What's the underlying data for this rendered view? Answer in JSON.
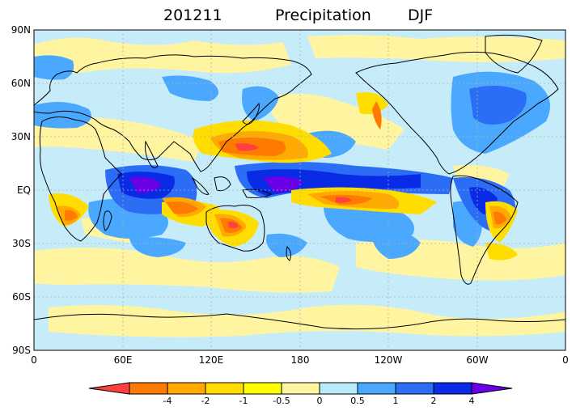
{
  "title": {
    "period": "201211",
    "variable": "Precipitation",
    "season": "DJF"
  },
  "axes": {
    "y_ticks": [
      "90N",
      "60N",
      "30N",
      "EQ",
      "30S",
      "60S",
      "90S"
    ],
    "x_ticks": [
      "0",
      "60E",
      "120E",
      "180",
      "120W",
      "60W",
      "0"
    ]
  },
  "colorbar": {
    "labels": [
      "-4",
      "-2",
      "-1",
      "-0.5",
      "0",
      "0.5",
      "1",
      "2",
      "4"
    ],
    "colors": [
      "#ff4040",
      "#ff7a00",
      "#ffaa00",
      "#ffdd00",
      "#ffff00",
      "#fff5a0",
      "#b8ecfa",
      "#4aa8ff",
      "#2b6ef5",
      "#0a2be6",
      "#6a00e6"
    ]
  },
  "palette": {
    "ocean_base": "#c6ecfa",
    "coast": "#000000",
    "grid": "#b0b0b0"
  }
}
